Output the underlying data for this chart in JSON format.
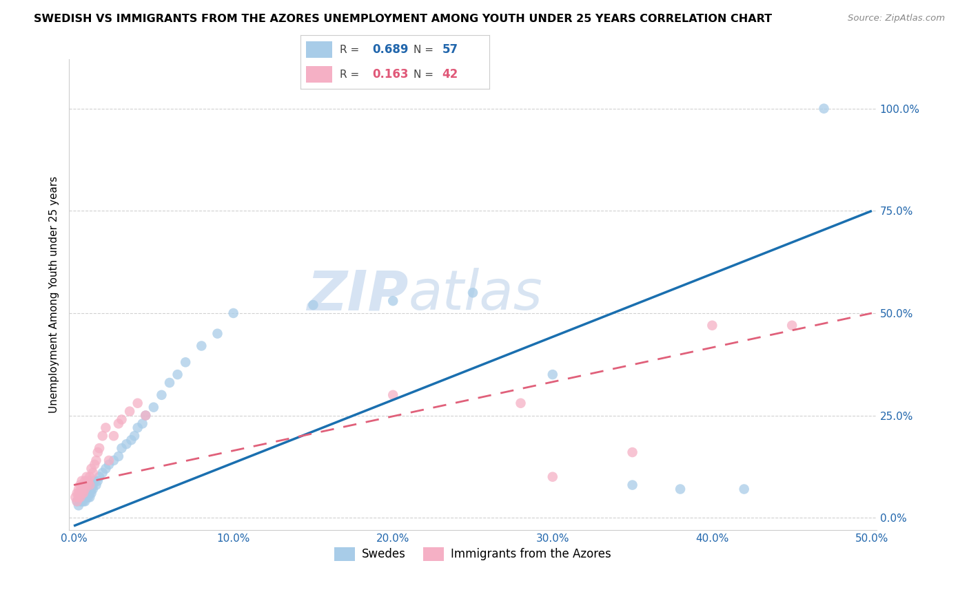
{
  "title": "SWEDISH VS IMMIGRANTS FROM THE AZORES UNEMPLOYMENT AMONG YOUTH UNDER 25 YEARS CORRELATION CHART",
  "source": "Source: ZipAtlas.com",
  "ylabel": "Unemployment Among Youth under 25 years",
  "xlim": [
    -0.003,
    0.503
  ],
  "ylim": [
    -0.03,
    1.12
  ],
  "xtick_vals": [
    0.0,
    0.1,
    0.2,
    0.3,
    0.4,
    0.5
  ],
  "xticklabels": [
    "0.0%",
    "10.0%",
    "20.0%",
    "30.0%",
    "40.0%",
    "50.0%"
  ],
  "ytick_vals": [
    0.0,
    0.25,
    0.5,
    0.75,
    1.0
  ],
  "yticklabels": [
    "0.0%",
    "25.0%",
    "50.0%",
    "75.0%",
    "100.0%"
  ],
  "swedes_R": 0.689,
  "swedes_N": 57,
  "azores_R": 0.163,
  "azores_N": 42,
  "swedes_color": "#a8cce8",
  "azores_color": "#f5b0c5",
  "swedes_line_color": "#1a6faf",
  "azores_line_color": "#e0607a",
  "legend_label_swedes": "Swedes",
  "legend_label_azores": "Immigrants from the Azores",
  "watermark_line1": "ZIP",
  "watermark_line2": "atlas",
  "swedes_x": [
    0.002,
    0.003,
    0.004,
    0.004,
    0.005,
    0.005,
    0.005,
    0.006,
    0.006,
    0.006,
    0.007,
    0.007,
    0.007,
    0.008,
    0.008,
    0.008,
    0.009,
    0.009,
    0.01,
    0.01,
    0.01,
    0.011,
    0.011,
    0.012,
    0.012,
    0.013,
    0.014,
    0.015,
    0.016,
    0.018,
    0.02,
    0.022,
    0.025,
    0.028,
    0.03,
    0.033,
    0.036,
    0.038,
    0.04,
    0.043,
    0.045,
    0.05,
    0.055,
    0.06,
    0.065,
    0.07,
    0.08,
    0.09,
    0.1,
    0.15,
    0.2,
    0.25,
    0.3,
    0.35,
    0.38,
    0.42,
    0.47
  ],
  "swedes_y": [
    0.04,
    0.03,
    0.05,
    0.04,
    0.05,
    0.04,
    0.06,
    0.05,
    0.04,
    0.06,
    0.05,
    0.06,
    0.04,
    0.06,
    0.05,
    0.07,
    0.06,
    0.05,
    0.07,
    0.06,
    0.05,
    0.07,
    0.06,
    0.08,
    0.07,
    0.09,
    0.08,
    0.09,
    0.1,
    0.11,
    0.12,
    0.13,
    0.14,
    0.15,
    0.17,
    0.18,
    0.19,
    0.2,
    0.22,
    0.23,
    0.25,
    0.27,
    0.3,
    0.33,
    0.35,
    0.38,
    0.42,
    0.45,
    0.5,
    0.52,
    0.53,
    0.55,
    0.35,
    0.08,
    0.07,
    0.07,
    1.0
  ],
  "azores_x": [
    0.001,
    0.002,
    0.002,
    0.003,
    0.003,
    0.003,
    0.004,
    0.004,
    0.004,
    0.005,
    0.005,
    0.005,
    0.006,
    0.006,
    0.007,
    0.007,
    0.008,
    0.008,
    0.009,
    0.01,
    0.01,
    0.011,
    0.012,
    0.013,
    0.014,
    0.015,
    0.016,
    0.018,
    0.02,
    0.022,
    0.025,
    0.028,
    0.03,
    0.035,
    0.04,
    0.045,
    0.2,
    0.28,
    0.3,
    0.35,
    0.4,
    0.45
  ],
  "azores_y": [
    0.05,
    0.04,
    0.06,
    0.05,
    0.06,
    0.07,
    0.05,
    0.06,
    0.08,
    0.06,
    0.07,
    0.09,
    0.06,
    0.08,
    0.07,
    0.09,
    0.08,
    0.1,
    0.09,
    0.08,
    0.1,
    0.12,
    0.11,
    0.13,
    0.14,
    0.16,
    0.17,
    0.2,
    0.22,
    0.14,
    0.2,
    0.23,
    0.24,
    0.26,
    0.28,
    0.25,
    0.3,
    0.28,
    0.1,
    0.16,
    0.47,
    0.47
  ],
  "swedes_line_x": [
    0.0,
    0.5
  ],
  "swedes_line_y": [
    -0.02,
    0.75
  ],
  "azores_line_x": [
    0.0,
    0.5
  ],
  "azores_line_y": [
    0.08,
    0.5
  ]
}
